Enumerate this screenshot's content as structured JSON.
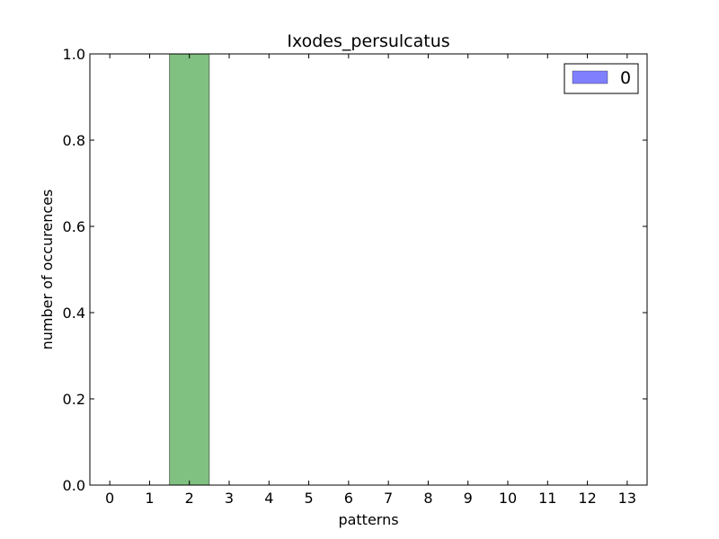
{
  "chart_data": {
    "type": "bar",
    "title": "Ixodes_persulcatus",
    "xlabel": "patterns",
    "ylabel": "number of occurences",
    "categories": [
      "0",
      "1",
      "2",
      "3",
      "4",
      "5",
      "6",
      "7",
      "8",
      "9",
      "10",
      "11",
      "12",
      "13"
    ],
    "series": [
      {
        "name": "0",
        "values": [
          0,
          0,
          1,
          0,
          0,
          0,
          0,
          0,
          0,
          0,
          0,
          0,
          0,
          0
        ],
        "legend_color": "#8080ff",
        "bar_color": "#80c080"
      }
    ],
    "ylim": [
      0,
      1
    ],
    "yticks": [
      "0.0",
      "0.2",
      "0.4",
      "0.6",
      "0.8",
      "1.0"
    ],
    "xlim": [
      -0.5,
      13.5
    ],
    "grid": false,
    "legend": {
      "position": "top-right",
      "entries": [
        "0"
      ]
    }
  }
}
